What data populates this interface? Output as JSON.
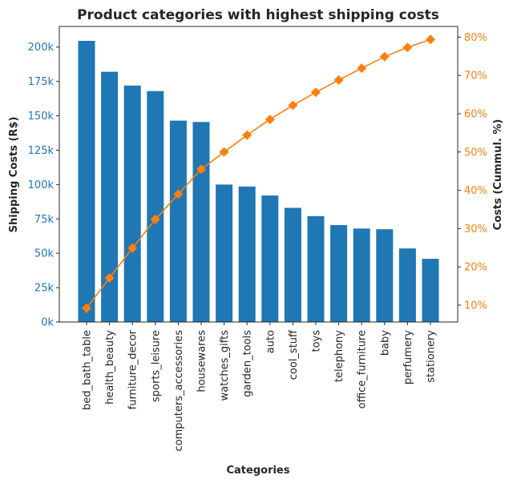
{
  "chart_data": {
    "type": "bar",
    "title": "Product categories with highest shipping costs",
    "xlabel": "Categories",
    "ylabel": "Shipping Costs (R$)",
    "y2label": "Costs (Cummul. %)",
    "categories": [
      "bed_bath_table",
      "health_beauty",
      "furniture_decor",
      "sports_leisure",
      "computers_accessories",
      "housewares",
      "watches_gifts",
      "garden_tools",
      "auto",
      "cool_stuff",
      "toys",
      "telephony",
      "office_furniture",
      "baby",
      "perfumery",
      "stationery"
    ],
    "series": [
      {
        "type": "bar",
        "axis": "left",
        "color": "#1f77b4",
        "values": [
          204500,
          182000,
          172000,
          168000,
          146500,
          145500,
          100000,
          98500,
          92000,
          83000,
          77000,
          70500,
          68000,
          67500,
          53500,
          46000
        ]
      },
      {
        "type": "line",
        "axis": "right",
        "color": "#ff7f0e",
        "marker": "diamond",
        "values": [
          9.2,
          17.1,
          24.9,
          32.4,
          39.0,
          45.5,
          50.0,
          54.4,
          58.5,
          62.2,
          65.6,
          68.8,
          71.9,
          74.9,
          77.3,
          79.4
        ]
      }
    ],
    "ylim": [
      0,
      215000
    ],
    "y_ticks": [
      0,
      25000,
      50000,
      75000,
      100000,
      125000,
      150000,
      175000,
      200000
    ],
    "y_tick_labels": [
      "0k",
      "25k",
      "50k",
      "75k",
      "100k",
      "125k",
      "150k",
      "175k",
      "200k"
    ],
    "y2lim": [
      5.6,
      82.8
    ],
    "y2_ticks": [
      10,
      20,
      30,
      40,
      50,
      60,
      70,
      80
    ],
    "y2_tick_labels": [
      "10%",
      "20%",
      "30%",
      "40%",
      "50%",
      "60%",
      "70%",
      "80%"
    ],
    "grid": false,
    "legend": "none"
  }
}
